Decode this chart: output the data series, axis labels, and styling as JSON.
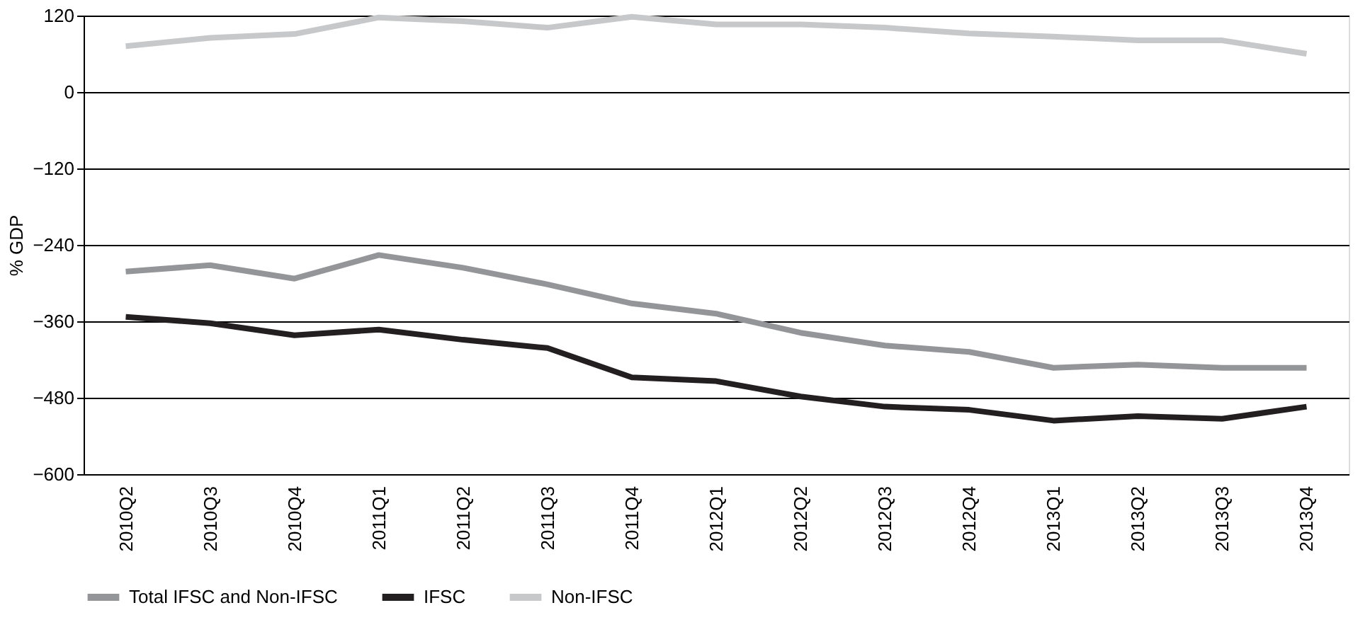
{
  "chart_data": {
    "type": "line",
    "ylabel": "% GDP",
    "categories": [
      "2010Q2",
      "2010Q3",
      "2010Q4",
      "2011Q1",
      "2011Q2",
      "2011Q3",
      "2011Q4",
      "2012Q1",
      "2012Q2",
      "2012Q3",
      "2012Q4",
      "2013Q1",
      "2013Q2",
      "2013Q3",
      "2013Q4"
    ],
    "series": [
      {
        "name": "Total IFSC and Non-IFSC",
        "color": "#939598",
        "values": [
          -282,
          -272,
          -293,
          -256,
          -276,
          -302,
          -332,
          -348,
          -378,
          -398,
          -408,
          -433,
          -428,
          -433,
          -433
        ]
      },
      {
        "name": "IFSC",
        "color": "#231f20",
        "values": [
          -353,
          -363,
          -382,
          -373,
          -389,
          -402,
          -448,
          -454,
          -478,
          -494,
          -499,
          -516,
          -509,
          -513,
          -494
        ]
      },
      {
        "name": "Non-IFSC",
        "color": "#c7c8ca",
        "values": [
          72,
          85,
          91,
          117,
          111,
          101,
          118,
          106,
          106,
          101,
          92,
          87,
          81,
          81,
          60
        ]
      }
    ],
    "ylim": [
      -600,
      120
    ],
    "yticks": [
      -600,
      -480,
      -360,
      -240,
      -120,
      0,
      120
    ],
    "grid": "y",
    "legend": "bottom",
    "marker": "none",
    "line_style": "solid"
  }
}
